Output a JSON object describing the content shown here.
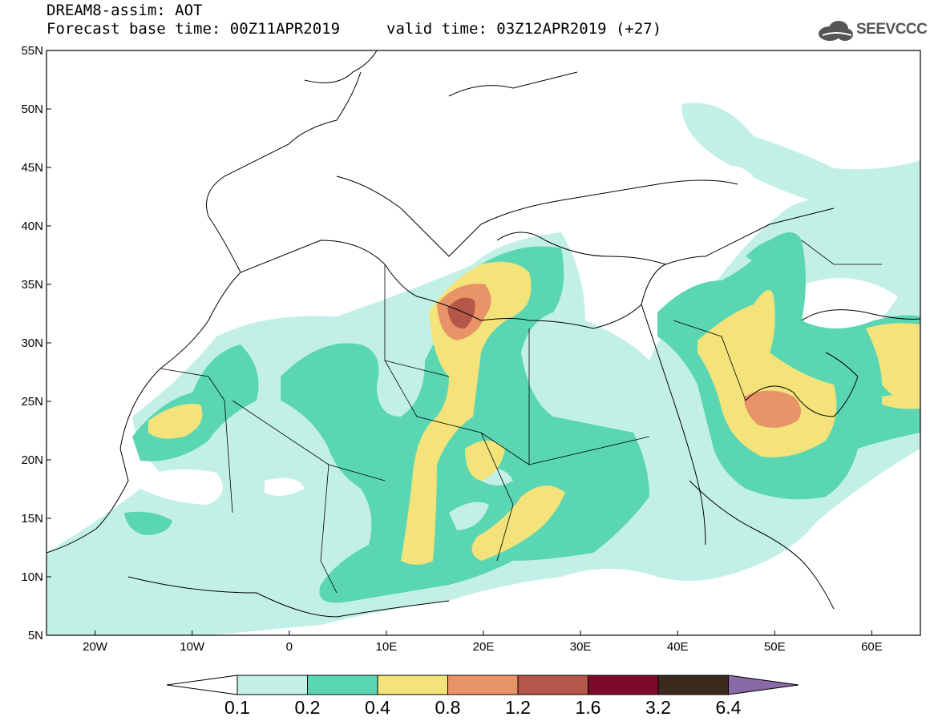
{
  "title": {
    "line1": "DREAM8-assim: AOT",
    "line2": "Forecast base time: 00Z11APR2019",
    "valid": "valid time: 03Z12APR2019 (+27)"
  },
  "logo": {
    "text": "SEEVCCC",
    "icon": "cloud-icon"
  },
  "map": {
    "lat_labels": [
      "55N",
      "50N",
      "45N",
      "40N",
      "35N",
      "30N",
      "25N",
      "20N",
      "15N",
      "10N",
      "5N"
    ],
    "lon_labels": [
      "20W",
      "10W",
      "0",
      "10E",
      "20E",
      "30E",
      "40E",
      "50E",
      "60E"
    ],
    "extent": {
      "lon": [
        -25,
        65
      ],
      "lat": [
        5,
        55
      ]
    }
  },
  "colorbar": {
    "labels": [
      "0.1",
      "0.2",
      "0.4",
      "0.8",
      "1.2",
      "1.6",
      "3.2",
      "6.4"
    ],
    "colors": [
      "#ffffff",
      "#c3f0e6",
      "#5ad7b2",
      "#f3e37a",
      "#e89368",
      "#b35848",
      "#7d0a2b",
      "#3a2a1c",
      "#8a6aa6"
    ]
  }
}
